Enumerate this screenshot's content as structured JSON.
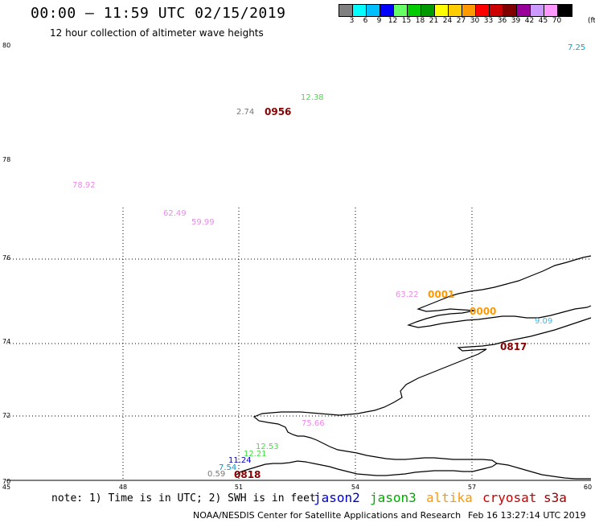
{
  "header": {
    "title": "00:00 – 11:59 UTC 02/15/2019",
    "subtitle": "12 hour collection of altimeter wave heights"
  },
  "colorbar": {
    "colors": [
      "#808080",
      "#00ffff",
      "#00bfff",
      "#0000ff",
      "#66ff66",
      "#00cc00",
      "#009900",
      "#ffff00",
      "#ffcc00",
      "#ff9900",
      "#ff0000",
      "#cc0000",
      "#800000",
      "#990099",
      "#cc99ff",
      "#ff99ff",
      "#000000"
    ],
    "labels": [
      "3",
      "6",
      "9",
      "12",
      "15",
      "18",
      "21",
      "24",
      "27",
      "30",
      "33",
      "36",
      "39",
      "42",
      "45",
      "70"
    ],
    "unit": "(ft)"
  },
  "axes": {
    "lat_labels": [
      "80",
      "78",
      "76",
      "74",
      "72",
      "70"
    ],
    "lon_labels": [
      "45",
      "48",
      "51",
      "54",
      "57",
      "60"
    ]
  },
  "wave_heights": [
    {
      "text": "7.25",
      "color": "#00aacc"
    },
    {
      "text": "12.38",
      "color": "#44dd44"
    },
    {
      "text": "2.74",
      "color": "#777777"
    },
    {
      "text": "78.92",
      "color": "#ee88ee"
    },
    {
      "text": "62.49",
      "color": "#ee88ee"
    },
    {
      "text": "59.99",
      "color": "#ee88ee"
    },
    {
      "text": "63.22",
      "color": "#ee88ee"
    },
    {
      "text": "9.09",
      "color": "#33bbee"
    },
    {
      "text": "75.66",
      "color": "#ee88ee"
    },
    {
      "text": "12.53",
      "color": "#44dd44"
    },
    {
      "text": "12.21",
      "color": "#44dd44"
    },
    {
      "text": "11.24",
      "color": "#0000cc"
    },
    {
      "text": "7.54",
      "color": "#0099dd"
    },
    {
      "text": "0.59",
      "color": "#777777"
    }
  ],
  "pass_times": [
    {
      "text": "0956",
      "color": "#880000"
    },
    {
      "text": "0001",
      "color": "#ff9900"
    },
    {
      "text": "0000",
      "color": "#ff9900"
    },
    {
      "text": "0817",
      "color": "#880000"
    },
    {
      "text": "0818",
      "color": "#880000"
    }
  ],
  "note": "note: 1) Time is in UTC; 2) SWH is in feet",
  "satellites": [
    {
      "name": "jason2",
      "color": "#0000cc"
    },
    {
      "name": "jason3",
      "color": "#00aa00"
    },
    {
      "name": "altika",
      "color": "#ff9900"
    },
    {
      "name": "cryosat",
      "color": "#cc0000"
    },
    {
      "name": "s3a",
      "color": "#990000"
    }
  ],
  "footer": {
    "credit": "NOAA/NESDIS Center for Satellite Applications and Research",
    "timestamp": "Feb 16 13:27:14 UTC 2019"
  }
}
